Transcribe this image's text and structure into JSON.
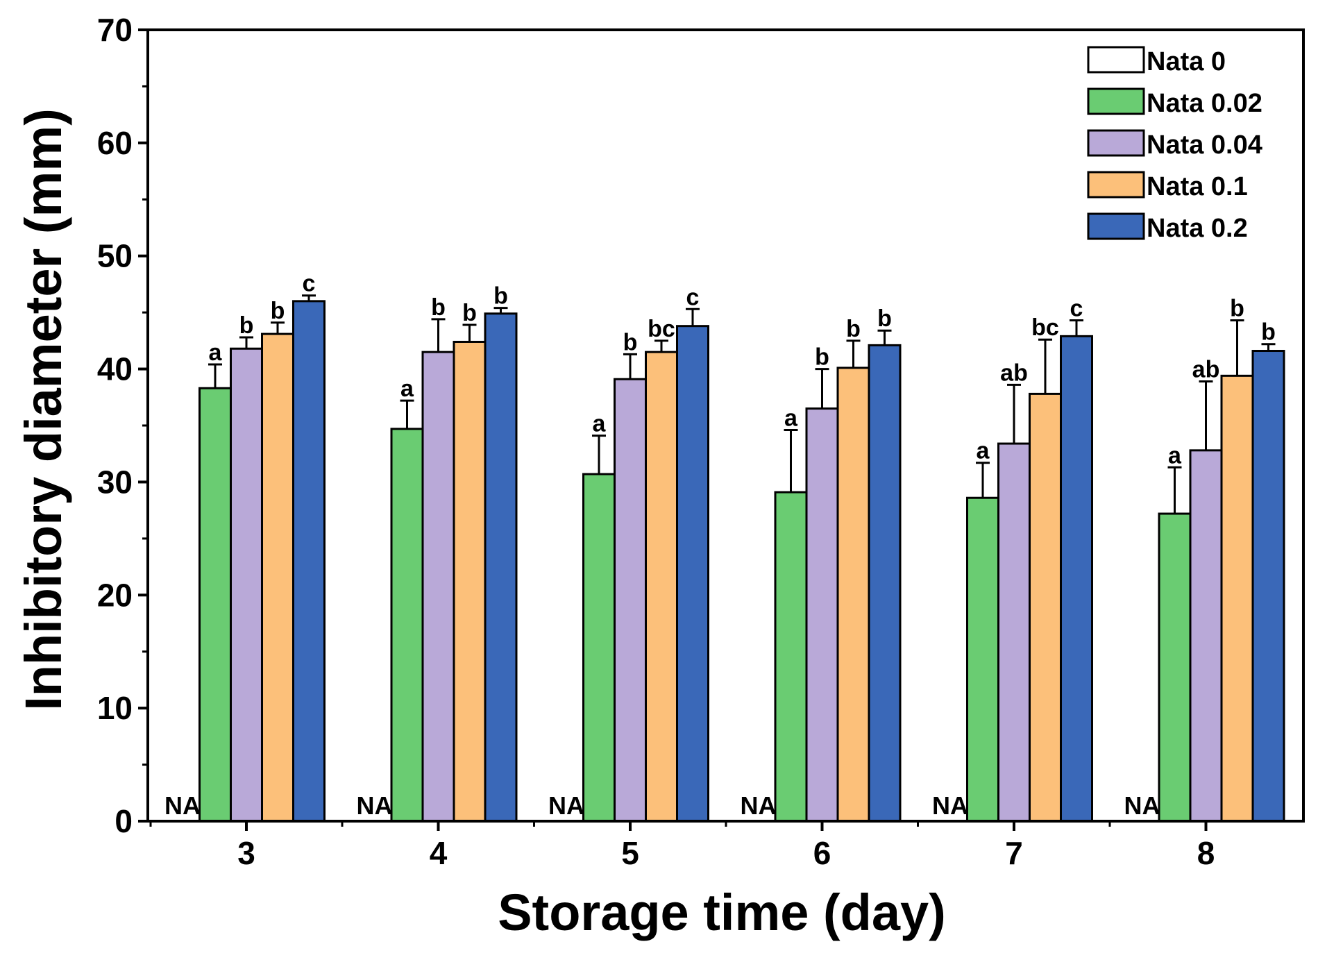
{
  "chart_data": {
    "type": "bar",
    "title": "",
    "xlabel": "Storage time (day)",
    "ylabel": "Inhibitory diameter (mm)",
    "ylim": [
      0,
      70
    ],
    "yticks": [
      "0",
      "10",
      "20",
      "30",
      "40",
      "50",
      "60",
      "70"
    ],
    "categories": [
      "3",
      "4",
      "5",
      "6",
      "7",
      "8"
    ],
    "legend_position": "top-right",
    "na_label": "NA",
    "series": [
      {
        "name": "Nata 0",
        "color": "#ffffff",
        "values": [
          null,
          null,
          null,
          null,
          null,
          null
        ],
        "errors": [
          null,
          null,
          null,
          null,
          null,
          null
        ],
        "labels": [
          "NA",
          "NA",
          "NA",
          "NA",
          "NA",
          "NA"
        ]
      },
      {
        "name": "Nata 0.02",
        "color": "#6acc72",
        "values": [
          38.3,
          34.7,
          30.7,
          29.1,
          28.6,
          27.2
        ],
        "errors": [
          2.1,
          2.5,
          3.4,
          5.5,
          3.1,
          4.1
        ],
        "labels": [
          "a",
          "a",
          "a",
          "a",
          "a",
          "a"
        ]
      },
      {
        "name": "Nata 0.04",
        "color": "#b9a9d8",
        "values": [
          41.8,
          41.5,
          39.1,
          36.5,
          33.4,
          32.8
        ],
        "errors": [
          1.0,
          2.9,
          2.2,
          3.5,
          5.2,
          6.1
        ],
        "labels": [
          "b",
          "b",
          "b",
          "b",
          "ab",
          "ab"
        ]
      },
      {
        "name": "Nata 0.1",
        "color": "#fcc07a",
        "values": [
          43.1,
          42.4,
          41.5,
          40.1,
          37.8,
          39.4
        ],
        "errors": [
          1.0,
          1.5,
          1.0,
          2.4,
          4.8,
          4.9
        ],
        "labels": [
          "b",
          "b",
          "bc",
          "b",
          "bc",
          "b"
        ]
      },
      {
        "name": "Nata 0.2",
        "color": "#3a68b8",
        "values": [
          46.0,
          44.9,
          43.8,
          42.1,
          42.9,
          41.6
        ],
        "errors": [
          0.5,
          0.5,
          1.5,
          1.3,
          1.4,
          0.6
        ],
        "labels": [
          "c",
          "b",
          "c",
          "b",
          "c",
          "b"
        ]
      }
    ]
  }
}
